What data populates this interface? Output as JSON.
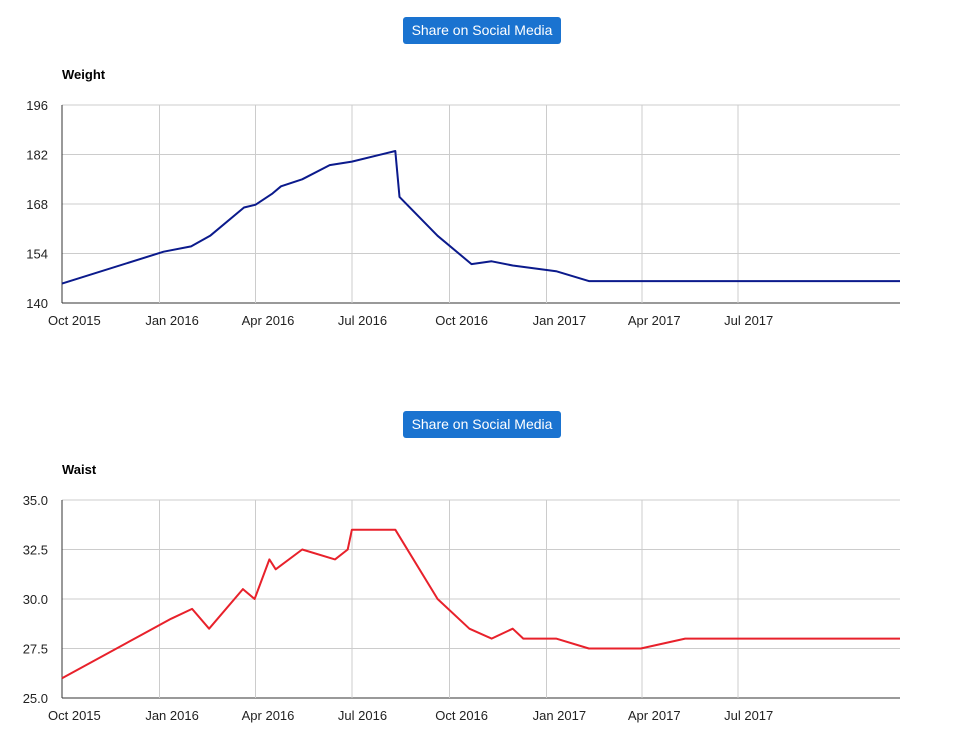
{
  "share_button_label": "Share on Social Media",
  "chart_data": [
    {
      "type": "line",
      "title": "Weight",
      "color": "#0b1a8c",
      "x_ticks": [
        "Oct 2015",
        "Jan 2016",
        "Apr 2016",
        "Jul 2016",
        "Oct 2016",
        "Jan 2017",
        "Apr 2017",
        "Jul 2017"
      ],
      "y_ticks": [
        "140",
        "154",
        "168",
        "182",
        "196"
      ],
      "ylim": [
        140,
        196
      ],
      "xlim": [
        "2015-10-01",
        "2017-12-01"
      ],
      "grid": true,
      "series": [
        {
          "points": [
            [
              "2015-10-01",
              145.5
            ],
            [
              "2016-01-05",
              154.5
            ],
            [
              "2016-01-31",
              156
            ],
            [
              "2016-02-18",
              159
            ],
            [
              "2016-03-21",
              167
            ],
            [
              "2016-04-01",
              167.8
            ],
            [
              "2016-04-17",
              171
            ],
            [
              "2016-04-25",
              173
            ],
            [
              "2016-05-15",
              175
            ],
            [
              "2016-06-10",
              179
            ],
            [
              "2016-07-01",
              180
            ],
            [
              "2016-08-11",
              183
            ],
            [
              "2016-08-15",
              170
            ],
            [
              "2016-09-20",
              159
            ],
            [
              "2016-10-22",
              151
            ],
            [
              "2016-11-10",
              151.8
            ],
            [
              "2016-11-30",
              150.6
            ],
            [
              "2017-01-10",
              149
            ],
            [
              "2017-02-10",
              146.2
            ],
            [
              "2017-12-01",
              146.2
            ]
          ]
        }
      ]
    },
    {
      "type": "line",
      "title": "Waist",
      "color": "#e8212b",
      "x_ticks": [
        "Oct 2015",
        "Jan 2016",
        "Apr 2016",
        "Jul 2016",
        "Oct 2016",
        "Jan 2017",
        "Apr 2017",
        "Jul 2017"
      ],
      "y_ticks": [
        "25.0",
        "27.5",
        "30.0",
        "32.5",
        "35.0"
      ],
      "ylim": [
        25,
        35
      ],
      "xlim": [
        "2015-10-01",
        "2017-12-01"
      ],
      "grid": true,
      "series": [
        {
          "points": [
            [
              "2015-10-01",
              26
            ],
            [
              "2016-01-12",
              29
            ],
            [
              "2016-02-01",
              29.5
            ],
            [
              "2016-02-17",
              28.5
            ],
            [
              "2016-03-20",
              30.5
            ],
            [
              "2016-03-31",
              30
            ],
            [
              "2016-04-14",
              32
            ],
            [
              "2016-04-20",
              31.5
            ],
            [
              "2016-05-15",
              32.5
            ],
            [
              "2016-06-15",
              32
            ],
            [
              "2016-06-27",
              32.5
            ],
            [
              "2016-07-01",
              33.5
            ],
            [
              "2016-08-11",
              33.5
            ],
            [
              "2016-09-20",
              30
            ],
            [
              "2016-10-20",
              28.5
            ],
            [
              "2016-11-10",
              28
            ],
            [
              "2016-11-30",
              28.5
            ],
            [
              "2016-12-10",
              28
            ],
            [
              "2017-01-10",
              28
            ],
            [
              "2017-02-10",
              27.5
            ],
            [
              "2017-03-31",
              27.5
            ],
            [
              "2017-05-12",
              28
            ],
            [
              "2017-12-01",
              28
            ]
          ]
        }
      ]
    }
  ]
}
